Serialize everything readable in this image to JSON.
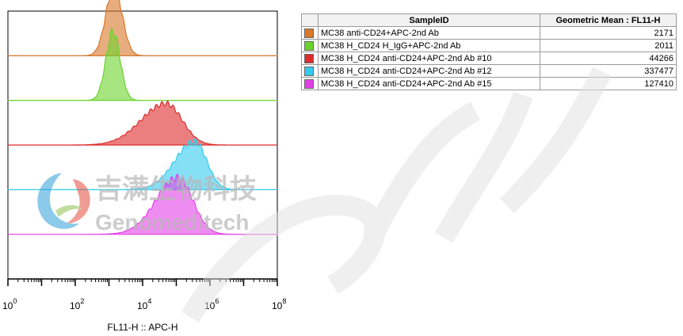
{
  "chart_data": {
    "type": "histogram-overlay",
    "xlabel": "FL11-H :: APC-H",
    "x_scale": "log",
    "xlim": [
      1,
      100000000
    ],
    "x_ticks": [
      {
        "value": 1,
        "base": "10",
        "exp": "0"
      },
      {
        "value": 100,
        "base": "10",
        "exp": "2"
      },
      {
        "value": 10000,
        "base": "10",
        "exp": "4"
      },
      {
        "value": 1000000,
        "base": "10",
        "exp": "6"
      },
      {
        "value": 100000000,
        "base": "10",
        "exp": "8"
      }
    ],
    "series": [
      {
        "name": "MC38 anti-CD24+APC-2nd Ab",
        "color": "#d9772a",
        "peak_log10": 3.15,
        "sigma": 0.24,
        "skew": 0.0,
        "height": 1.0
      },
      {
        "name": "MC38 H_CD24 H_IgG+APC-2nd Ab",
        "color": "#6bd32c",
        "peak_log10": 3.12,
        "sigma": 0.21,
        "skew": 0.0,
        "height": 1.0
      },
      {
        "name": "MC38 H_CD24 anti-CD24+APC-2nd Ab #10",
        "color": "#dd2a2a",
        "peak_log10": 4.7,
        "sigma": 0.55,
        "skew": 0.35,
        "height": 0.6
      },
      {
        "name": "MC38 H_CD24 anti-CD24+APC-2nd Ab #12",
        "color": "#33ccf0",
        "peak_log10": 5.55,
        "sigma": 0.42,
        "skew": 0.4,
        "height": 0.7
      },
      {
        "name": "MC38 H_CD24 anti-CD24+APC-2nd Ab #15",
        "color": "#e23fe8",
        "peak_log10": 5.05,
        "sigma": 0.5,
        "skew": 0.3,
        "height": 0.82
      }
    ]
  },
  "table": {
    "headers": [
      "SampleID",
      "Geometric Mean : FL11-H"
    ],
    "rows": [
      {
        "color": "#d9772a",
        "sample": "MC38 anti-CD24+APC-2nd Ab",
        "value": "2171"
      },
      {
        "color": "#6bd32c",
        "sample": "MC38 H_CD24 H_IgG+APC-2nd Ab",
        "value": "2011"
      },
      {
        "color": "#dd2a2a",
        "sample": "MC38 H_CD24 anti-CD24+APC-2nd Ab #10",
        "value": "44266"
      },
      {
        "color": "#33ccf0",
        "sample": "MC38 H_CD24 anti-CD24+APC-2nd Ab #12",
        "value": "337477"
      },
      {
        "color": "#e23fe8",
        "sample": "MC38 H_CD24 anti-CD24+APC-2nd Ab #15",
        "value": "127410"
      }
    ]
  },
  "watermark": {
    "text_cn": "吉满生物科技",
    "text_en": "Genomeditech",
    "color": "#b8b8b8"
  }
}
